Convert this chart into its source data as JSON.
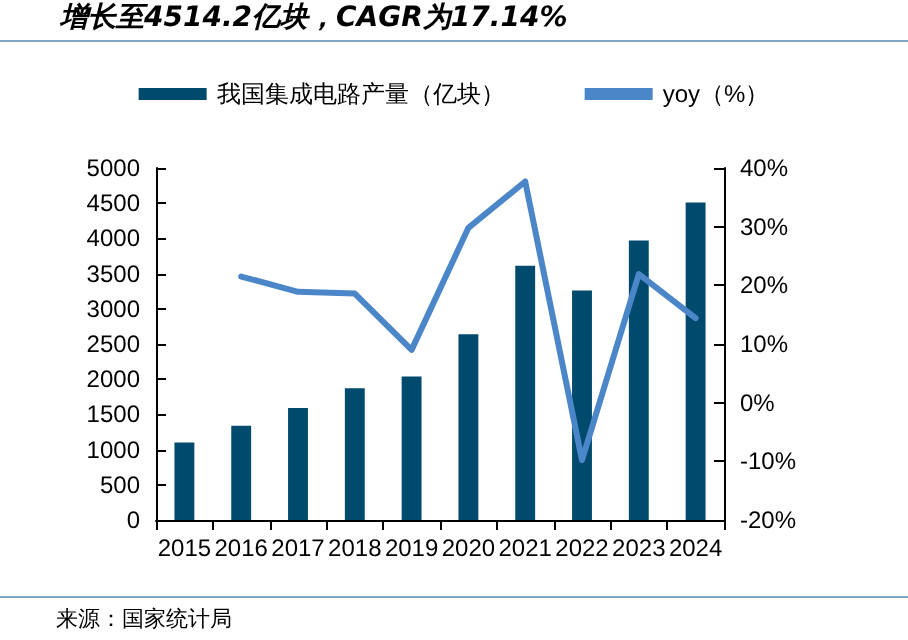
{
  "chart_data": {
    "type": "bar",
    "title": "增长至4514.2亿块，CAGR为17.14%",
    "annotations": [
      "来源：国家统计局"
    ],
    "categories": [
      "2015",
      "2016",
      "2017",
      "2018",
      "2019",
      "2020",
      "2021",
      "2022",
      "2023",
      "2024"
    ],
    "series": [
      {
        "name": "我国集成电路产量（亿块）",
        "color": "#004a6e",
        "values": [
          1100,
          1340,
          1590,
          1870,
          2040,
          2640,
          3610,
          3260,
          3970,
          4510
        ]
      },
      {
        "name": "yoy（%）",
        "type": "line",
        "axis": "y2",
        "color": "#4a86c8",
        "values": [
          null,
          21.5,
          18.9,
          18.6,
          9.0,
          29.8,
          37.7,
          -9.8,
          21.9,
          14.4
        ]
      }
    ],
    "ylim": [
      0,
      5000
    ],
    "yticks": [
      0,
      500,
      1000,
      1500,
      2000,
      2500,
      3000,
      3500,
      4000,
      4500,
      5000
    ],
    "y2lim": [
      -20,
      40
    ],
    "y2ticks": [
      {
        "value": -20,
        "label": "-20%"
      },
      {
        "value": -10,
        "label": "-10%"
      },
      {
        "value": 0,
        "label": "0%"
      },
      {
        "value": 10,
        "label": "10%"
      },
      {
        "value": 20,
        "label": "20%"
      },
      {
        "value": 30,
        "label": "30%"
      },
      {
        "value": 40,
        "label": "40%"
      }
    ],
    "grid": false,
    "legend": "top",
    "marker": "none",
    "line_style": "solid"
  }
}
